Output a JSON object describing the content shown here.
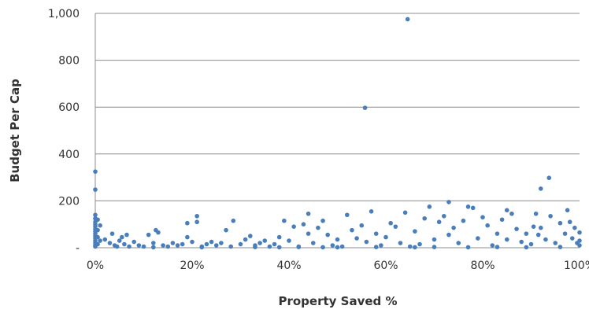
{
  "chart_data": {
    "type": "scatter",
    "title": "",
    "xlabel": "Property Saved %",
    "ylabel": "Budget Per Cap",
    "xlim": [
      0,
      1
    ],
    "ylim": [
      0,
      1000
    ],
    "x_ticks": [
      0,
      0.2,
      0.4,
      0.6,
      0.8,
      1.0
    ],
    "x_tick_labels": [
      "0%",
      "20%",
      "40%",
      "60%",
      "80%",
      "100%"
    ],
    "y_ticks": [
      0,
      200,
      400,
      600,
      800,
      1000
    ],
    "y_tick_labels": [
      "-",
      "200",
      "400",
      "600",
      "800",
      "1,000"
    ],
    "grid": "horizontal",
    "legend": "none",
    "marker_color": "#4A7EBB",
    "series": [
      {
        "points": [
          [
            0.645,
            975
          ],
          [
            0.557,
            597
          ],
          [
            0.0,
            325
          ],
          [
            0.0,
            248
          ],
          [
            0.937,
            298
          ],
          [
            0.92,
            252
          ],
          [
            0.0,
            140
          ],
          [
            0.0,
            125
          ],
          [
            0.0,
            110
          ],
          [
            0.0,
            100
          ],
          [
            0.0,
            90
          ],
          [
            0.0,
            80
          ],
          [
            0.0,
            70
          ],
          [
            0.0,
            60
          ],
          [
            0.0,
            50
          ],
          [
            0.0,
            40
          ],
          [
            0.0,
            30
          ],
          [
            0.0,
            20
          ],
          [
            0.0,
            10
          ],
          [
            0.0,
            5
          ],
          [
            0.005,
            120
          ],
          [
            0.005,
            75
          ],
          [
            0.005,
            45
          ],
          [
            0.005,
            15
          ],
          [
            0.01,
            95
          ],
          [
            0.01,
            30
          ],
          [
            0.02,
            35
          ],
          [
            0.03,
            20
          ],
          [
            0.035,
            60
          ],
          [
            0.04,
            10
          ],
          [
            0.045,
            5
          ],
          [
            0.05,
            30
          ],
          [
            0.055,
            45
          ],
          [
            0.06,
            15
          ],
          [
            0.065,
            55
          ],
          [
            0.07,
            5
          ],
          [
            0.08,
            25
          ],
          [
            0.09,
            10
          ],
          [
            0.1,
            5
          ],
          [
            0.11,
            55
          ],
          [
            0.12,
            20
          ],
          [
            0.125,
            75
          ],
          [
            0.13,
            65
          ],
          [
            0.14,
            10
          ],
          [
            0.15,
            5
          ],
          [
            0.16,
            20
          ],
          [
            0.17,
            10
          ],
          [
            0.18,
            15
          ],
          [
            0.19,
            45
          ],
          [
            0.19,
            105
          ],
          [
            0.2,
            25
          ],
          [
            0.21,
            135
          ],
          [
            0.21,
            110
          ],
          [
            0.22,
            5
          ],
          [
            0.23,
            15
          ],
          [
            0.24,
            25
          ],
          [
            0.25,
            10
          ],
          [
            0.26,
            20
          ],
          [
            0.27,
            75
          ],
          [
            0.28,
            5
          ],
          [
            0.285,
            115
          ],
          [
            0.3,
            15
          ],
          [
            0.31,
            35
          ],
          [
            0.32,
            50
          ],
          [
            0.33,
            10
          ],
          [
            0.34,
            20
          ],
          [
            0.35,
            30
          ],
          [
            0.36,
            5
          ],
          [
            0.37,
            15
          ],
          [
            0.38,
            45
          ],
          [
            0.39,
            115
          ],
          [
            0.4,
            30
          ],
          [
            0.41,
            90
          ],
          [
            0.42,
            5
          ],
          [
            0.43,
            100
          ],
          [
            0.44,
            145
          ],
          [
            0.44,
            60
          ],
          [
            0.45,
            20
          ],
          [
            0.46,
            85
          ],
          [
            0.47,
            115
          ],
          [
            0.48,
            55
          ],
          [
            0.49,
            10
          ],
          [
            0.5,
            35
          ],
          [
            0.51,
            5
          ],
          [
            0.52,
            140
          ],
          [
            0.53,
            75
          ],
          [
            0.54,
            40
          ],
          [
            0.55,
            95
          ],
          [
            0.56,
            25
          ],
          [
            0.57,
            155
          ],
          [
            0.58,
            60
          ],
          [
            0.59,
            10
          ],
          [
            0.6,
            45
          ],
          [
            0.61,
            105
          ],
          [
            0.62,
            90
          ],
          [
            0.63,
            20
          ],
          [
            0.64,
            150
          ],
          [
            0.65,
            5
          ],
          [
            0.66,
            70
          ],
          [
            0.67,
            15
          ],
          [
            0.68,
            125
          ],
          [
            0.69,
            175
          ],
          [
            0.7,
            35
          ],
          [
            0.71,
            110
          ],
          [
            0.72,
            135
          ],
          [
            0.73,
            195
          ],
          [
            0.73,
            55
          ],
          [
            0.74,
            85
          ],
          [
            0.75,
            20
          ],
          [
            0.76,
            115
          ],
          [
            0.77,
            175
          ],
          [
            0.78,
            170
          ],
          [
            0.79,
            40
          ],
          [
            0.8,
            130
          ],
          [
            0.81,
            95
          ],
          [
            0.82,
            10
          ],
          [
            0.83,
            60
          ],
          [
            0.84,
            120
          ],
          [
            0.85,
            160
          ],
          [
            0.85,
            35
          ],
          [
            0.86,
            145
          ],
          [
            0.87,
            80
          ],
          [
            0.88,
            25
          ],
          [
            0.89,
            60
          ],
          [
            0.9,
            15
          ],
          [
            0.905,
            90
          ],
          [
            0.91,
            145
          ],
          [
            0.915,
            55
          ],
          [
            0.92,
            85
          ],
          [
            0.93,
            35
          ],
          [
            0.94,
            135
          ],
          [
            0.95,
            20
          ],
          [
            0.96,
            105
          ],
          [
            0.97,
            60
          ],
          [
            0.975,
            160
          ],
          [
            0.98,
            110
          ],
          [
            0.985,
            40
          ],
          [
            0.99,
            85
          ],
          [
            0.995,
            20
          ],
          [
            1.0,
            65
          ],
          [
            1.0,
            30
          ],
          [
            1.0,
            10
          ],
          [
            0.12,
            2
          ],
          [
            0.22,
            2
          ],
          [
            0.33,
            3
          ],
          [
            0.38,
            2
          ],
          [
            0.42,
            3
          ],
          [
            0.47,
            2
          ],
          [
            0.5,
            2
          ],
          [
            0.58,
            3
          ],
          [
            0.66,
            2
          ],
          [
            0.7,
            3
          ],
          [
            0.77,
            2
          ],
          [
            0.83,
            3
          ],
          [
            0.89,
            2
          ],
          [
            0.96,
            3
          ]
        ]
      }
    ]
  }
}
